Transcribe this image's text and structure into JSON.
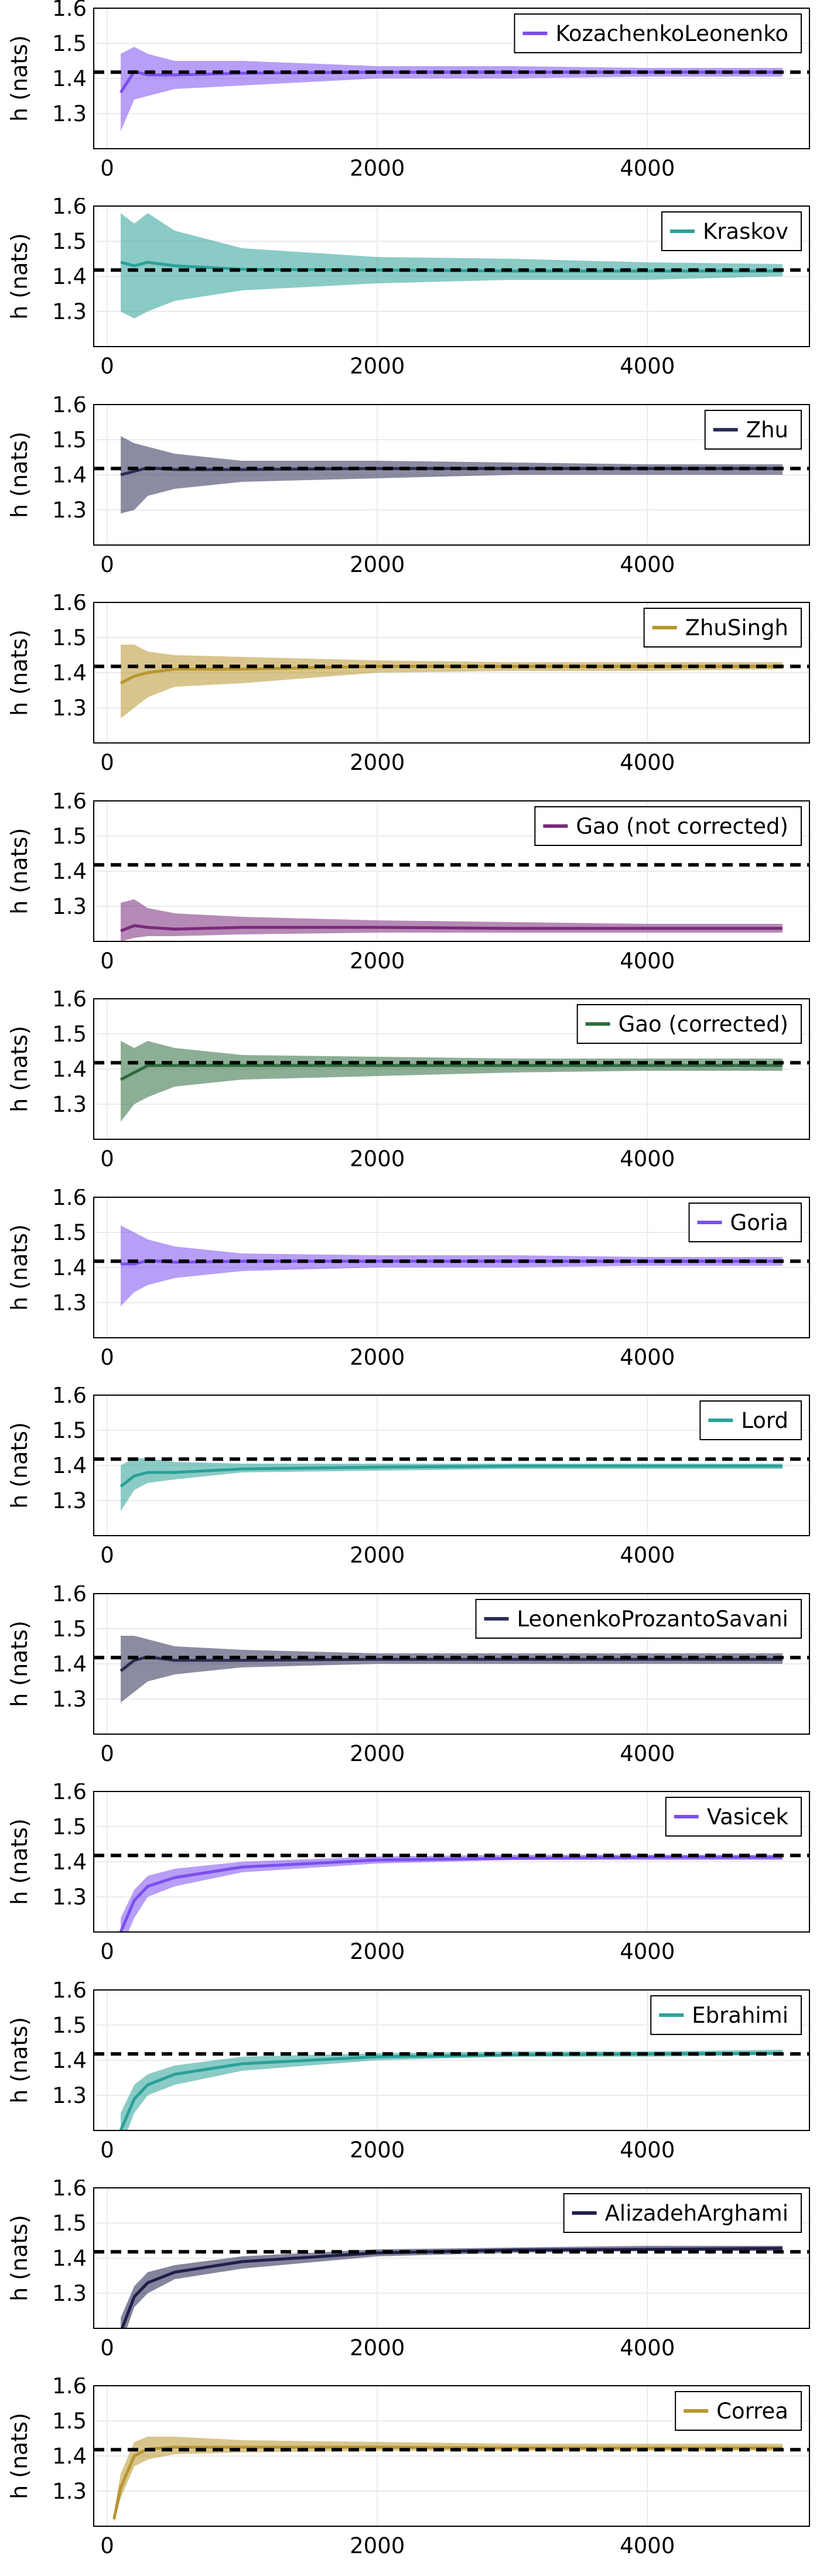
{
  "common": {
    "ylabel": "h (nats)",
    "yticks": [
      1.3,
      1.4,
      1.5,
      1.6
    ],
    "xticks": [
      0,
      2000,
      4000
    ],
    "xlim": [
      -100,
      5200
    ],
    "ylim": [
      1.2,
      1.6
    ],
    "reference_line": 1.418,
    "grid": true,
    "legend_position": "top-right"
  },
  "chart_data": [
    {
      "type": "line",
      "legend": "KozachenkoLeonenko",
      "color": "#7b4ff0",
      "x": [
        100,
        200,
        300,
        500,
        1000,
        2000,
        3000,
        4000,
        5000
      ],
      "y": [
        1.36,
        1.42,
        1.41,
        1.41,
        1.415,
        1.418,
        1.418,
        1.418,
        1.418
      ],
      "lower": [
        1.25,
        1.34,
        1.35,
        1.37,
        1.38,
        1.4,
        1.4,
        1.405,
        1.405
      ],
      "upper": [
        1.47,
        1.49,
        1.47,
        1.45,
        1.45,
        1.435,
        1.435,
        1.43,
        1.43
      ]
    },
    {
      "type": "line",
      "legend": "Kraskov",
      "color": "#2aa198",
      "x": [
        100,
        200,
        300,
        500,
        1000,
        2000,
        3000,
        4000,
        5000
      ],
      "y": [
        1.44,
        1.43,
        1.44,
        1.43,
        1.42,
        1.418,
        1.415,
        1.415,
        1.415
      ],
      "lower": [
        1.3,
        1.28,
        1.3,
        1.33,
        1.36,
        1.38,
        1.39,
        1.39,
        1.4
      ],
      "upper": [
        1.58,
        1.55,
        1.58,
        1.53,
        1.48,
        1.455,
        1.45,
        1.44,
        1.435
      ]
    },
    {
      "type": "line",
      "legend": "Zhu",
      "color": "#2c2c54",
      "x": [
        100,
        200,
        300,
        500,
        1000,
        2000,
        3000,
        4000,
        5000
      ],
      "y": [
        1.4,
        1.41,
        1.42,
        1.415,
        1.415,
        1.418,
        1.418,
        1.418,
        1.418
      ],
      "lower": [
        1.29,
        1.3,
        1.34,
        1.36,
        1.38,
        1.39,
        1.4,
        1.4,
        1.4
      ],
      "upper": [
        1.51,
        1.49,
        1.48,
        1.46,
        1.44,
        1.44,
        1.435,
        1.43,
        1.43
      ]
    },
    {
      "type": "line",
      "legend": "ZhuSingh",
      "color": "#b8962e",
      "x": [
        100,
        200,
        300,
        500,
        1000,
        2000,
        3000,
        4000,
        5000
      ],
      "y": [
        1.37,
        1.39,
        1.4,
        1.41,
        1.41,
        1.418,
        1.418,
        1.418,
        1.418
      ],
      "lower": [
        1.27,
        1.3,
        1.33,
        1.36,
        1.37,
        1.4,
        1.405,
        1.405,
        1.41
      ],
      "upper": [
        1.48,
        1.48,
        1.46,
        1.45,
        1.445,
        1.435,
        1.43,
        1.43,
        1.43
      ]
    },
    {
      "type": "line",
      "legend": "Gao (not corrected)",
      "color": "#7a2a7a",
      "x": [
        100,
        200,
        300,
        500,
        1000,
        2000,
        3000,
        4000,
        5000
      ],
      "y": [
        1.23,
        1.245,
        1.24,
        1.235,
        1.24,
        1.24,
        1.237,
        1.237,
        1.237
      ],
      "lower": [
        1.2,
        1.21,
        1.215,
        1.215,
        1.22,
        1.225,
        1.225,
        1.225,
        1.225
      ],
      "upper": [
        1.31,
        1.32,
        1.295,
        1.28,
        1.27,
        1.26,
        1.255,
        1.25,
        1.25
      ]
    },
    {
      "type": "line",
      "legend": "Gao (corrected)",
      "color": "#2e6b3e",
      "x": [
        100,
        200,
        300,
        500,
        1000,
        2000,
        3000,
        4000,
        5000
      ],
      "y": [
        1.37,
        1.39,
        1.41,
        1.41,
        1.41,
        1.41,
        1.41,
        1.41,
        1.41
      ],
      "lower": [
        1.25,
        1.3,
        1.32,
        1.35,
        1.37,
        1.38,
        1.39,
        1.395,
        1.395
      ],
      "upper": [
        1.48,
        1.46,
        1.48,
        1.46,
        1.44,
        1.435,
        1.43,
        1.43,
        1.43
      ]
    },
    {
      "type": "line",
      "legend": "Goria",
      "color": "#7b4ff0",
      "x": [
        100,
        200,
        300,
        500,
        1000,
        2000,
        3000,
        4000,
        5000
      ],
      "y": [
        1.41,
        1.41,
        1.42,
        1.415,
        1.418,
        1.418,
        1.418,
        1.418,
        1.418
      ],
      "lower": [
        1.29,
        1.33,
        1.35,
        1.37,
        1.39,
        1.4,
        1.4,
        1.405,
        1.405
      ],
      "upper": [
        1.52,
        1.5,
        1.48,
        1.46,
        1.44,
        1.435,
        1.435,
        1.43,
        1.43
      ]
    },
    {
      "type": "line",
      "legend": "Lord",
      "color": "#2aa198",
      "x": [
        100,
        200,
        300,
        500,
        1000,
        2000,
        3000,
        4000,
        5000
      ],
      "y": [
        1.34,
        1.37,
        1.38,
        1.38,
        1.39,
        1.395,
        1.398,
        1.398,
        1.398
      ],
      "lower": [
        1.27,
        1.33,
        1.35,
        1.36,
        1.38,
        1.385,
        1.39,
        1.39,
        1.39
      ],
      "upper": [
        1.4,
        1.42,
        1.42,
        1.41,
        1.405,
        1.405,
        1.405,
        1.405,
        1.405
      ]
    },
    {
      "type": "line",
      "legend": "LeonenkoProzantoSavani",
      "color": "#2c2c54",
      "x": [
        100,
        200,
        300,
        500,
        1000,
        2000,
        3000,
        4000,
        5000
      ],
      "y": [
        1.38,
        1.41,
        1.42,
        1.41,
        1.41,
        1.413,
        1.413,
        1.413,
        1.413
      ],
      "lower": [
        1.29,
        1.32,
        1.35,
        1.37,
        1.39,
        1.4,
        1.4,
        1.4,
        1.4
      ],
      "upper": [
        1.48,
        1.48,
        1.47,
        1.45,
        1.44,
        1.43,
        1.43,
        1.43,
        1.43
      ]
    },
    {
      "type": "line",
      "legend": "Vasicek",
      "color": "#7b4ff0",
      "x": [
        100,
        200,
        300,
        500,
        1000,
        2000,
        3000,
        4000,
        5000
      ],
      "y": [
        1.2,
        1.29,
        1.33,
        1.355,
        1.385,
        1.405,
        1.41,
        1.413,
        1.413
      ],
      "lower": [
        1.15,
        1.24,
        1.3,
        1.33,
        1.37,
        1.395,
        1.405,
        1.405,
        1.405
      ],
      "upper": [
        1.24,
        1.32,
        1.36,
        1.38,
        1.4,
        1.415,
        1.42,
        1.42,
        1.42
      ]
    },
    {
      "type": "line",
      "legend": "Ebrahimi",
      "color": "#2aa198",
      "x": [
        100,
        200,
        300,
        500,
        1000,
        2000,
        3000,
        4000,
        5000
      ],
      "y": [
        1.2,
        1.29,
        1.33,
        1.36,
        1.39,
        1.41,
        1.415,
        1.418,
        1.42
      ],
      "lower": [
        1.15,
        1.25,
        1.3,
        1.33,
        1.37,
        1.4,
        1.41,
        1.41,
        1.415
      ],
      "upper": [
        1.25,
        1.33,
        1.36,
        1.385,
        1.41,
        1.42,
        1.425,
        1.425,
        1.43
      ]
    },
    {
      "type": "line",
      "legend": "AlizadehArghami",
      "color": "#1f1f4a",
      "x": [
        100,
        200,
        300,
        500,
        1000,
        2000,
        3000,
        4000,
        5000
      ],
      "y": [
        1.19,
        1.29,
        1.33,
        1.36,
        1.39,
        1.415,
        1.423,
        1.425,
        1.428
      ],
      "lower": [
        1.15,
        1.26,
        1.3,
        1.34,
        1.37,
        1.405,
        1.415,
        1.42,
        1.42
      ],
      "upper": [
        1.23,
        1.32,
        1.36,
        1.38,
        1.405,
        1.425,
        1.43,
        1.435,
        1.435
      ]
    },
    {
      "type": "line",
      "legend": "Correa",
      "color": "#b8962e",
      "x": [
        50,
        100,
        200,
        300,
        500,
        1000,
        2000,
        3000,
        4000,
        5000
      ],
      "y": [
        1.22,
        1.31,
        1.4,
        1.42,
        1.425,
        1.425,
        1.425,
        1.423,
        1.423,
        1.423
      ],
      "lower": [
        1.21,
        1.28,
        1.37,
        1.39,
        1.405,
        1.41,
        1.415,
        1.415,
        1.415,
        1.415
      ],
      "upper": [
        1.24,
        1.35,
        1.44,
        1.455,
        1.455,
        1.445,
        1.44,
        1.435,
        1.435,
        1.435
      ]
    }
  ]
}
